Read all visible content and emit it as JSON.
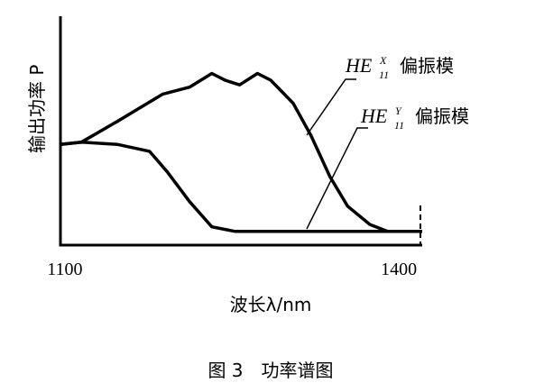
{
  "chart_data": {
    "type": "line",
    "y_label": "输出功率 P",
    "x_label": "波长λ/nm",
    "caption": "图 3　功率谱图",
    "xlim": [
      1096,
      1421
    ],
    "xticks": [
      1100,
      1400
    ],
    "ylim": [
      0,
      1
    ],
    "series": [
      {
        "color": "#000000",
        "x": [
          1096,
          1115,
          1147,
          1188,
          1212,
          1232,
          1244,
          1257,
          1273,
          1285,
          1305,
          1321,
          1338,
          1354,
          1374,
          1390,
          1421
        ],
        "values": [
          0.44,
          0.45,
          0.54,
          0.66,
          0.69,
          0.75,
          0.72,
          0.7,
          0.75,
          0.72,
          0.62,
          0.48,
          0.3,
          0.17,
          0.09,
          0.06,
          0.06
        ]
      },
      {
        "color": "#000000",
        "x": [
          1096,
          1115,
          1147,
          1176,
          1192,
          1212,
          1232,
          1253,
          1285,
          1326,
          1421
        ],
        "values": [
          0.44,
          0.45,
          0.44,
          0.41,
          0.32,
          0.19,
          0.08,
          0.06,
          0.06,
          0.06,
          0.06
        ]
      }
    ],
    "annotations": [
      {
        "base": "HE",
        "sup": "X",
        "sub": "11",
        "suffix": "偏振模"
      },
      {
        "base": "HE",
        "sup": "Y",
        "sub": "11",
        "suffix": "偏振模"
      }
    ]
  }
}
